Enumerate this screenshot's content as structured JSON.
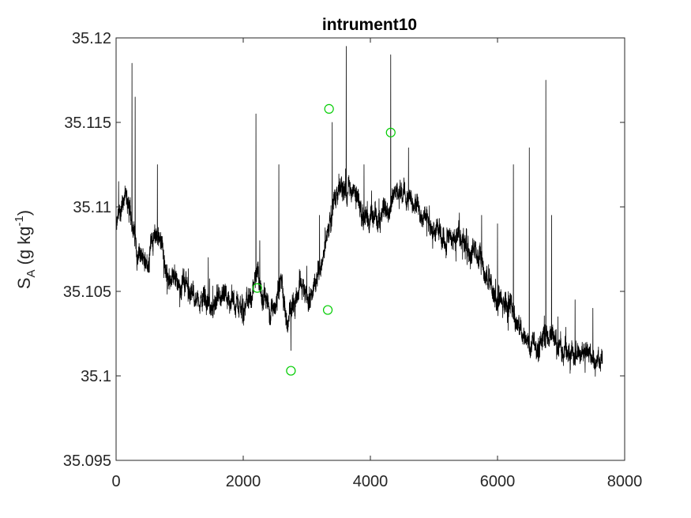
{
  "chart_data": {
    "type": "line",
    "title": "intrument10",
    "xlabel": "",
    "ylabel": {
      "main": "S",
      "sub": "A",
      "unit_open": "(g kg",
      "unit_sup": "-1",
      "unit_close": ")"
    },
    "xlim": [
      0,
      8000
    ],
    "ylim": [
      35.095,
      35.12
    ],
    "x_ticks": [
      0,
      2000,
      4000,
      6000,
      8000
    ],
    "x_tick_labels": [
      "0",
      "2000",
      "4000",
      "6000",
      "8000"
    ],
    "y_ticks": [
      35.095,
      35.1,
      35.105,
      35.11,
      35.115,
      35.12
    ],
    "y_tick_labels": [
      "35.095",
      "35.1",
      "35.105",
      "35.11",
      "35.115",
      "35.12"
    ],
    "grid": false,
    "legend": "none",
    "series": [
      {
        "line_color": "#000000",
        "x_range": [
          0,
          7650
        ],
        "n_points": 7650,
        "base_profile": [
          [
            0,
            35.1085
          ],
          [
            50,
            35.1095
          ],
          [
            150,
            35.1105
          ],
          [
            250,
            35.1095
          ],
          [
            330,
            35.1075
          ],
          [
            450,
            35.1065
          ],
          [
            550,
            35.108
          ],
          [
            700,
            35.1085
          ],
          [
            800,
            35.106
          ],
          [
            950,
            35.1055
          ],
          [
            1100,
            35.1055
          ],
          [
            1250,
            35.1045
          ],
          [
            1400,
            35.1045
          ],
          [
            1600,
            35.104
          ],
          [
            1800,
            35.1045
          ],
          [
            2000,
            35.104
          ],
          [
            2150,
            35.1045
          ],
          [
            2220,
            35.1065
          ],
          [
            2300,
            35.1045
          ],
          [
            2450,
            35.104
          ],
          [
            2600,
            35.1055
          ],
          [
            2700,
            35.1035
          ],
          [
            2800,
            35.1045
          ],
          [
            2900,
            35.1055
          ],
          [
            3000,
            35.1045
          ],
          [
            3150,
            35.1055
          ],
          [
            3250,
            35.107
          ],
          [
            3350,
            35.109
          ],
          [
            3450,
            35.1105
          ],
          [
            3550,
            35.111
          ],
          [
            3650,
            35.1115
          ],
          [
            3750,
            35.1105
          ],
          [
            3850,
            35.1095
          ],
          [
            4000,
            35.1095
          ],
          [
            4150,
            35.1095
          ],
          [
            4300,
            35.1105
          ],
          [
            4450,
            35.111
          ],
          [
            4600,
            35.1105
          ],
          [
            4800,
            35.1095
          ],
          [
            5000,
            35.1085
          ],
          [
            5200,
            35.108
          ],
          [
            5400,
            35.108
          ],
          [
            5600,
            35.1075
          ],
          [
            5800,
            35.106
          ],
          [
            6000,
            35.1045
          ],
          [
            6200,
            35.104
          ],
          [
            6400,
            35.1025
          ],
          [
            6600,
            35.102
          ],
          [
            6800,
            35.1025
          ],
          [
            7000,
            35.1015
          ],
          [
            7200,
            35.1015
          ],
          [
            7400,
            35.1015
          ],
          [
            7650,
            35.1005
          ]
        ],
        "noise_amplitude": 0.0009,
        "spikes": [
          [
            40,
            35.1115
          ],
          [
            120,
            35.1105
          ],
          [
            250,
            35.1185
          ],
          [
            300,
            35.1165
          ],
          [
            650,
            35.1125
          ],
          [
            1450,
            35.107
          ],
          [
            2200,
            35.1155
          ],
          [
            2260,
            35.108
          ],
          [
            2560,
            35.1125
          ],
          [
            2750,
            35.1015
          ],
          [
            3000,
            35.1065
          ],
          [
            3200,
            35.1095
          ],
          [
            3400,
            35.115
          ],
          [
            3620,
            35.1195
          ],
          [
            3900,
            35.1125
          ],
          [
            4320,
            35.119
          ],
          [
            4600,
            35.1135
          ],
          [
            5100,
            35.109
          ],
          [
            5750,
            35.1095
          ],
          [
            6000,
            35.109
          ],
          [
            6250,
            35.1125
          ],
          [
            6500,
            35.1135
          ],
          [
            6760,
            35.1175
          ],
          [
            6850,
            35.1095
          ],
          [
            6950,
            35.1035
          ],
          [
            7220,
            35.1045
          ],
          [
            7500,
            35.104
          ]
        ]
      }
    ],
    "markers": {
      "shape": "circle",
      "color": "#00cc00",
      "points": [
        [
          2220,
          35.1052
        ],
        [
          2750,
          35.1003
        ],
        [
          3330,
          35.1039
        ],
        [
          3350,
          35.1158
        ],
        [
          4320,
          35.1144
        ]
      ]
    }
  }
}
